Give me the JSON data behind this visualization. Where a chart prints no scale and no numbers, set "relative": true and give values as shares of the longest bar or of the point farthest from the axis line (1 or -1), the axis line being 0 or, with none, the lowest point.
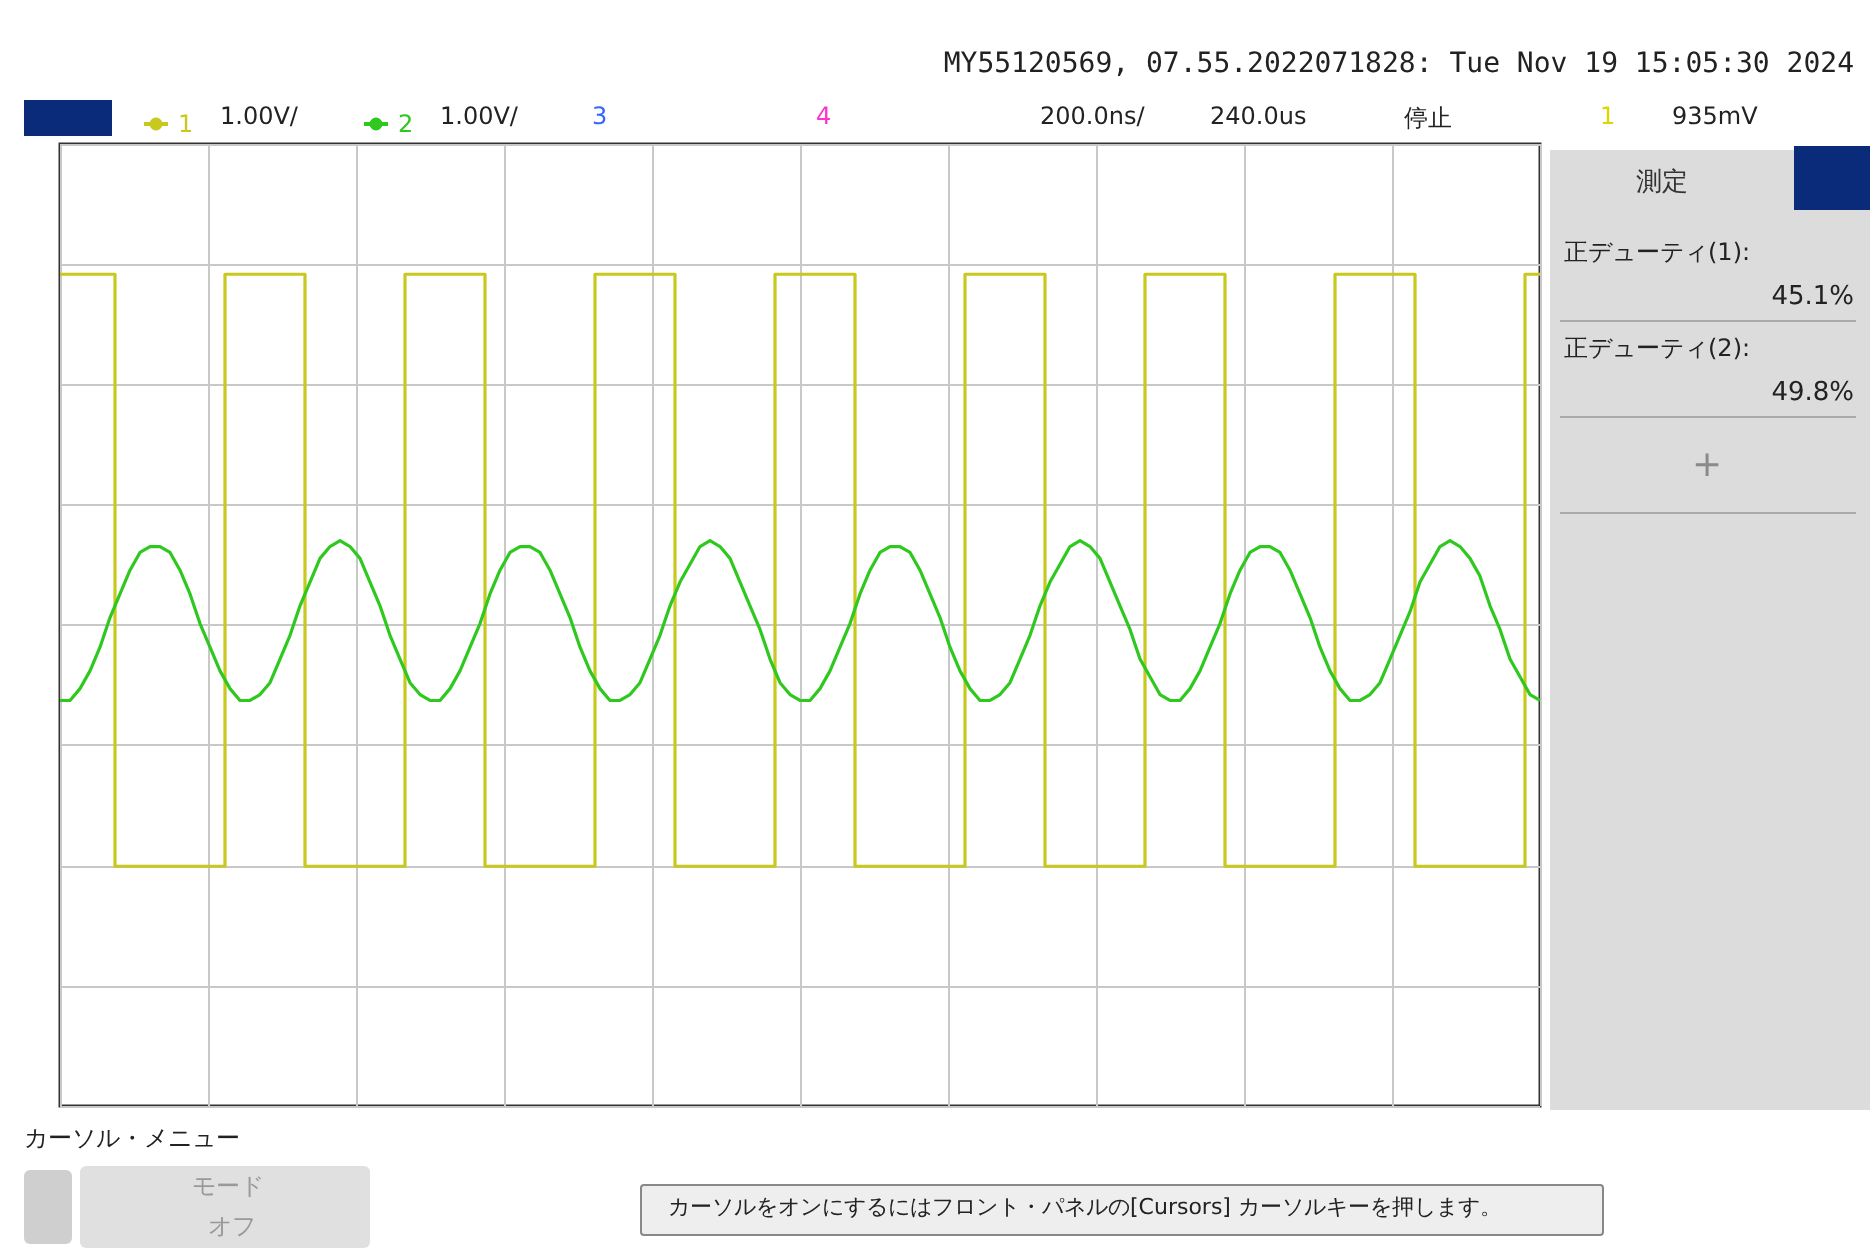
{
  "chart_data": {
    "type": "line",
    "relative": true,
    "title": "MY55120569, 07.55.2022071828: Tue Nov 19 15:05:30 2024",
    "legend": "top left",
    "grid": true,
    "categories": [
      null,
      null,
      null,
      null,
      null,
      null,
      null,
      null,
      null,
      null,
      null,
      null,
      null,
      null,
      null,
      null,
      null,
      null,
      null,
      null,
      null,
      null,
      null,
      null,
      null,
      null,
      null,
      null,
      null,
      null,
      null,
      null,
      null,
      null,
      null,
      null,
      null,
      null,
      null,
      null,
      null,
      null,
      null,
      null,
      null,
      null,
      null,
      null,
      null,
      null,
      null,
      null,
      null,
      null,
      null,
      null,
      null,
      null,
      null,
      null,
      null,
      null,
      null,
      null,
      null,
      null,
      null,
      null,
      null,
      null,
      null,
      null,
      null,
      null,
      null,
      null,
      null,
      null,
      null,
      null,
      null,
      null,
      null,
      null,
      null,
      null,
      null,
      null,
      null,
      null,
      null,
      null,
      null,
      null,
      null,
      null,
      null,
      null,
      null,
      null,
      null,
      null,
      null,
      null,
      null,
      null,
      null,
      null,
      null,
      null,
      null,
      null,
      null,
      null,
      null,
      null,
      null,
      null,
      null,
      null,
      null,
      null,
      null,
      null,
      null,
      null,
      null,
      null,
      null,
      null,
      null,
      null,
      null,
      null,
      null,
      null,
      null,
      null,
      null,
      null,
      null,
      null,
      null,
      null,
      null,
      null,
      null,
      null,
      null
    ],
    "series": [
      {
        "name": "1",
        "type": "step",
        "color": "#c8c81e",
        "values": [
          1,
          1,
          1,
          1,
          1,
          1,
          0,
          0,
          0,
          0,
          0,
          0,
          0,
          0,
          0,
          0,
          0,
          1,
          1,
          1,
          1,
          1,
          1,
          1,
          1,
          0,
          0,
          0,
          0,
          0,
          0,
          0,
          0,
          0,
          0,
          1,
          1,
          1,
          1,
          1,
          1,
          1,
          1,
          0,
          0,
          0,
          0,
          0,
          0,
          0,
          0,
          0,
          0,
          0,
          1,
          1,
          1,
          1,
          1,
          1,
          1,
          1,
          0,
          0,
          0,
          0,
          0,
          0,
          0,
          0,
          0,
          0,
          1,
          1,
          1,
          1,
          1,
          1,
          1,
          1,
          0,
          0,
          0,
          0,
          0,
          0,
          0,
          0,
          0,
          0,
          0,
          1,
          1,
          1,
          1,
          1,
          1,
          1,
          1,
          0,
          0,
          0,
          0,
          0,
          0,
          0,
          0,
          0,
          0,
          1,
          1,
          1,
          1,
          1,
          1,
          1,
          1,
          0,
          0,
          0,
          0,
          0,
          0,
          0,
          0,
          0,
          0,
          0,
          1,
          1,
          1,
          1,
          1,
          1,
          1,
          1,
          0,
          0,
          0,
          0,
          0,
          0,
          0,
          0,
          0,
          0,
          0,
          1,
          1
        ]
      },
      {
        "name": "2",
        "color": "#2ec81e",
        "values": [
          0.28,
          0.28,
          0.3,
          0.33,
          0.37,
          0.42,
          0.46,
          0.5,
          0.53,
          0.54,
          0.54,
          0.53,
          0.5,
          0.46,
          0.41,
          0.37,
          0.33,
          0.3,
          0.28,
          0.28,
          0.29,
          0.31,
          0.35,
          0.39,
          0.44,
          0.48,
          0.52,
          0.54,
          0.55,
          0.54,
          0.52,
          0.48,
          0.44,
          0.39,
          0.35,
          0.31,
          0.29,
          0.28,
          0.28,
          0.3,
          0.33,
          0.37,
          0.41,
          0.46,
          0.5,
          0.53,
          0.54,
          0.54,
          0.53,
          0.5,
          0.46,
          0.42,
          0.37,
          0.33,
          0.3,
          0.28,
          0.28,
          0.29,
          0.31,
          0.35,
          0.39,
          0.44,
          0.48,
          0.51,
          0.54,
          0.55,
          0.54,
          0.52,
          0.48,
          0.44,
          0.4,
          0.35,
          0.31,
          0.29,
          0.28,
          0.28,
          0.3,
          0.33,
          0.37,
          0.41,
          0.46,
          0.5,
          0.53,
          0.54,
          0.54,
          0.53,
          0.5,
          0.46,
          0.42,
          0.37,
          0.33,
          0.3,
          0.28,
          0.28,
          0.29,
          0.31,
          0.35,
          0.39,
          0.44,
          0.48,
          0.51,
          0.54,
          0.55,
          0.54,
          0.52,
          0.48,
          0.44,
          0.4,
          0.35,
          0.32,
          0.29,
          0.28,
          0.28,
          0.3,
          0.33,
          0.37,
          0.41,
          0.46,
          0.5,
          0.53,
          0.54,
          0.54,
          0.53,
          0.5,
          0.46,
          0.42,
          0.37,
          0.33,
          0.3,
          0.28,
          0.28,
          0.29,
          0.31,
          0.35,
          0.39,
          0.43,
          0.48,
          0.51,
          0.54,
          0.55,
          0.54,
          0.52,
          0.49,
          0.44,
          0.4,
          0.35,
          0.32,
          0.29,
          0.28
        ]
      }
    ],
    "annotations": [
      "1.00V/",
      "1.00V/",
      "3",
      "4",
      "200.0ns/",
      "240.0us",
      "停止",
      "1",
      "935mV",
      "測定",
      "正デューティ(1):",
      "45.1%",
      "正デューティ(2):",
      "49.8%",
      "+",
      "カーソル・メニュー",
      "モード",
      "オフ",
      "カーソルをオンにするにはフロント・パネルの[Cursors] カーソルキーを押します。"
    ]
  }
}
